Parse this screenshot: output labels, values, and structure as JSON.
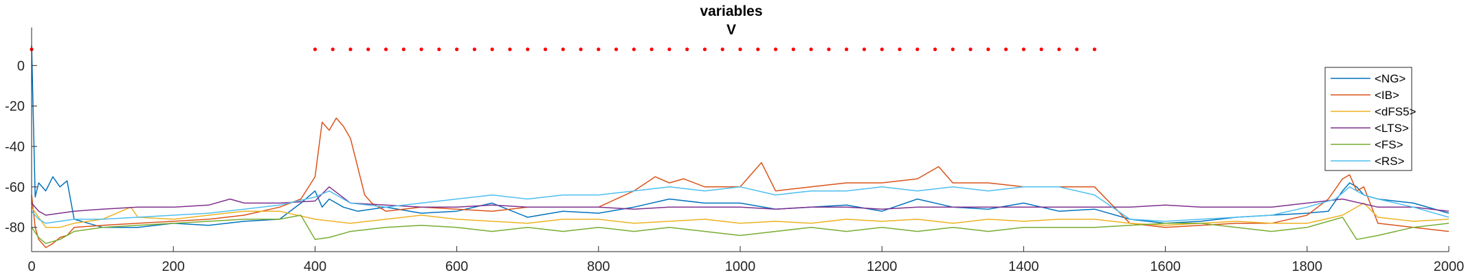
{
  "chart_data": {
    "type": "line",
    "title": "variables",
    "subtitle": "V",
    "xlabel": "",
    "ylabel": "",
    "xlim": [
      0,
      2000
    ],
    "ylim": [
      -92,
      12
    ],
    "xticks": [
      0,
      200,
      400,
      600,
      800,
      1000,
      1200,
      1400,
      1600,
      1800,
      2000
    ],
    "yticks": [
      -80,
      -60,
      -40,
      -20,
      0
    ],
    "grid": false,
    "legend_position": "top-right",
    "marker_series": {
      "color": "#ff0000",
      "y": 8,
      "x": [
        0,
        400,
        425,
        450,
        475,
        500,
        525,
        550,
        575,
        600,
        625,
        650,
        675,
        700,
        725,
        750,
        775,
        800,
        825,
        850,
        875,
        900,
        925,
        950,
        975,
        1000,
        1025,
        1050,
        1075,
        1100,
        1125,
        1150,
        1175,
        1200,
        1225,
        1250,
        1275,
        1300,
        1325,
        1350,
        1375,
        1400,
        1425,
        1450,
        1475,
        1500
      ]
    },
    "series": [
      {
        "name": "<NG>",
        "color": "#0072bd",
        "x": [
          0,
          5,
          10,
          20,
          30,
          40,
          50,
          60,
          100,
          150,
          200,
          250,
          300,
          350,
          380,
          400,
          410,
          420,
          440,
          460,
          500,
          550,
          600,
          650,
          700,
          750,
          800,
          850,
          900,
          950,
          1000,
          1050,
          1100,
          1150,
          1200,
          1250,
          1300,
          1350,
          1400,
          1450,
          1500,
          1550,
          1600,
          1650,
          1700,
          1750,
          1800,
          1830,
          1850,
          1860,
          1870,
          1880,
          1900,
          1950,
          2000
        ],
        "y": [
          10,
          -65,
          -58,
          -62,
          -55,
          -60,
          -57,
          -76,
          -80,
          -80,
          -78,
          -79,
          -77,
          -76,
          -68,
          -62,
          -70,
          -66,
          -70,
          -72,
          -70,
          -73,
          -72,
          -68,
          -75,
          -72,
          -73,
          -70,
          -66,
          -68,
          -68,
          -71,
          -70,
          -69,
          -72,
          -66,
          -70,
          -71,
          -68,
          -72,
          -71,
          -76,
          -78,
          -77,
          -75,
          -74,
          -73,
          -72,
          -62,
          -58,
          -60,
          -64,
          -66,
          -68,
          -73
        ]
      },
      {
        "name": "<IB>",
        "color": "#d95319",
        "x": [
          0,
          5,
          10,
          20,
          30,
          40,
          50,
          60,
          100,
          150,
          200,
          250,
          300,
          350,
          380,
          400,
          410,
          420,
          430,
          440,
          450,
          460,
          470,
          480,
          500,
          550,
          600,
          650,
          700,
          750,
          800,
          850,
          880,
          900,
          920,
          950,
          1000,
          1030,
          1050,
          1100,
          1150,
          1200,
          1250,
          1280,
          1300,
          1350,
          1400,
          1450,
          1500,
          1550,
          1600,
          1650,
          1700,
          1750,
          1800,
          1830,
          1850,
          1860,
          1870,
          1880,
          1900,
          1950,
          2000
        ],
        "y": [
          -64,
          -80,
          -86,
          -90,
          -88,
          -85,
          -84,
          -80,
          -79,
          -78,
          -77,
          -76,
          -74,
          -70,
          -66,
          -55,
          -28,
          -32,
          -26,
          -30,
          -36,
          -50,
          -64,
          -68,
          -72,
          -70,
          -71,
          -72,
          -70,
          -70,
          -70,
          -62,
          -55,
          -58,
          -56,
          -60,
          -60,
          -48,
          -62,
          -60,
          -58,
          -58,
          -56,
          -50,
          -58,
          -58,
          -60,
          -60,
          -60,
          -78,
          -80,
          -79,
          -78,
          -78,
          -74,
          -66,
          -56,
          -54,
          -62,
          -60,
          -78,
          -80,
          -82
        ]
      },
      {
        "name": "<dFS5>",
        "color": "#edb120",
        "x": [
          0,
          10,
          20,
          40,
          60,
          100,
          140,
          150,
          200,
          250,
          300,
          350,
          400,
          450,
          500,
          550,
          600,
          650,
          700,
          750,
          800,
          850,
          900,
          950,
          1000,
          1050,
          1100,
          1150,
          1200,
          1250,
          1300,
          1350,
          1400,
          1450,
          1500,
          1550,
          1600,
          1650,
          1700,
          1750,
          1800,
          1850,
          1880,
          1900,
          1950,
          2000
        ],
        "y": [
          -70,
          -75,
          -80,
          -80,
          -78,
          -76,
          -70,
          -75,
          -76,
          -74,
          -72,
          -72,
          -76,
          -78,
          -76,
          -74,
          -76,
          -77,
          -78,
          -76,
          -76,
          -78,
          -77,
          -76,
          -78,
          -77,
          -78,
          -76,
          -77,
          -76,
          -78,
          -76,
          -77,
          -76,
          -76,
          -78,
          -79,
          -78,
          -77,
          -78,
          -78,
          -74,
          -68,
          -75,
          -77,
          -76
        ]
      },
      {
        "name": "<LTS>",
        "color": "#7e2f8e",
        "x": [
          0,
          10,
          20,
          40,
          60,
          100,
          150,
          200,
          250,
          280,
          300,
          350,
          400,
          420,
          450,
          500,
          550,
          600,
          650,
          700,
          750,
          800,
          850,
          900,
          950,
          1000,
          1050,
          1100,
          1150,
          1200,
          1250,
          1300,
          1350,
          1400,
          1450,
          1500,
          1550,
          1600,
          1650,
          1700,
          1750,
          1800,
          1850,
          1900,
          1950,
          2000
        ],
        "y": [
          -68,
          -72,
          -74,
          -73,
          -72,
          -71,
          -70,
          -70,
          -69,
          -66,
          -68,
          -68,
          -67,
          -60,
          -68,
          -69,
          -70,
          -70,
          -69,
          -70,
          -70,
          -70,
          -71,
          -70,
          -70,
          -70,
          -71,
          -70,
          -70,
          -71,
          -70,
          -70,
          -70,
          -70,
          -70,
          -70,
          -70,
          -69,
          -70,
          -70,
          -70,
          -68,
          -66,
          -70,
          -70,
          -72
        ]
      },
      {
        "name": "<FS>",
        "color": "#77ac30",
        "x": [
          0,
          10,
          20,
          40,
          60,
          100,
          150,
          200,
          250,
          300,
          350,
          380,
          400,
          420,
          450,
          500,
          550,
          600,
          650,
          700,
          750,
          800,
          850,
          900,
          950,
          1000,
          1050,
          1100,
          1150,
          1200,
          1250,
          1300,
          1350,
          1400,
          1450,
          1500,
          1550,
          1600,
          1650,
          1700,
          1750,
          1800,
          1850,
          1870,
          1900,
          1950,
          2000
        ],
        "y": [
          -80,
          -85,
          -88,
          -86,
          -82,
          -80,
          -79,
          -78,
          -77,
          -76,
          -76,
          -74,
          -86,
          -85,
          -82,
          -80,
          -79,
          -80,
          -82,
          -80,
          -82,
          -80,
          -82,
          -80,
          -82,
          -84,
          -82,
          -80,
          -82,
          -80,
          -82,
          -80,
          -82,
          -80,
          -80,
          -80,
          -79,
          -78,
          -78,
          -80,
          -82,
          -80,
          -75,
          -86,
          -84,
          -80,
          -78
        ]
      },
      {
        "name": "<RS>",
        "color": "#4dbeee",
        "x": [
          0,
          10,
          20,
          40,
          60,
          100,
          150,
          200,
          250,
          300,
          350,
          400,
          420,
          450,
          500,
          550,
          600,
          650,
          700,
          750,
          800,
          850,
          900,
          950,
          1000,
          1050,
          1100,
          1150,
          1200,
          1250,
          1300,
          1350,
          1400,
          1450,
          1500,
          1550,
          1600,
          1650,
          1700,
          1750,
          1800,
          1840,
          1860,
          1880,
          1900,
          1950,
          2000
        ],
        "y": [
          -72,
          -76,
          -78,
          -77,
          -76,
          -76,
          -75,
          -74,
          -73,
          -71,
          -69,
          -65,
          -62,
          -68,
          -70,
          -68,
          -66,
          -64,
          -66,
          -64,
          -64,
          -62,
          -60,
          -62,
          -60,
          -64,
          -62,
          -62,
          -60,
          -62,
          -60,
          -62,
          -60,
          -60,
          -64,
          -76,
          -77,
          -76,
          -75,
          -74,
          -70,
          -66,
          -60,
          -64,
          -66,
          -70,
          -75
        ]
      }
    ]
  }
}
